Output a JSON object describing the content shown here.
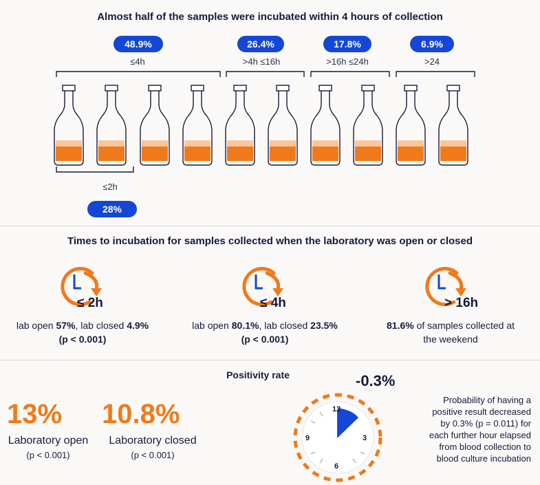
{
  "section1": {
    "title": "Almost half of the samples were incubated within 4 hours of collection",
    "groups": [
      {
        "pct": "48.9%",
        "label": "≤4h"
      },
      {
        "pct": "26.4%",
        "label": ">4h ≤16h"
      },
      {
        "pct": "17.8%",
        "label": ">16h ≤24h"
      },
      {
        "pct": "6.9%",
        "label": ">24"
      }
    ],
    "sub_group": {
      "label": "≤2h",
      "pct": "28%"
    }
  },
  "section2": {
    "title": "Times to incubation for samples collected when the laboratory was open or closed",
    "items": [
      {
        "time": "≤ 2h",
        "line1_a": "lab open ",
        "line1_b": "57%",
        "line1_c": ", lab closed ",
        "line1_d": "4.9%",
        "line2": "(p < 0.001)"
      },
      {
        "time": "≤ 4h",
        "line1_a": "lab open ",
        "line1_b": "80.1%",
        "line1_c": ", lab closed ",
        "line1_d": "23.5%",
        "line2": "(p < 0.001)"
      },
      {
        "time": "> 16h",
        "line1_b": "81.6%",
        "line1_a": " of samples collected at",
        "line2": "the weekend"
      }
    ]
  },
  "section3": {
    "title": "Positivity rate",
    "open": {
      "value": "13%",
      "label": "Laboratory open",
      "p": "(p < 0.001)"
    },
    "closed": {
      "value": "10.8%",
      "label": "Laboratory closed",
      "p": "(p < 0.001)"
    },
    "clock": {
      "delta": "-0.3%",
      "n12": "12",
      "n3": "3",
      "n6": "6",
      "n9": "9"
    },
    "note": [
      "Probability of having a",
      "positive result decreased",
      "by 0.3% (p = 0.011) for",
      "each further hour elapsed",
      "from blood collection to",
      "blood culture incubation"
    ]
  },
  "colors": {
    "orange": "#f07a1a",
    "light_orange": "#f9c79c",
    "blue": "#1447d6",
    "navy": "#141a3c"
  }
}
